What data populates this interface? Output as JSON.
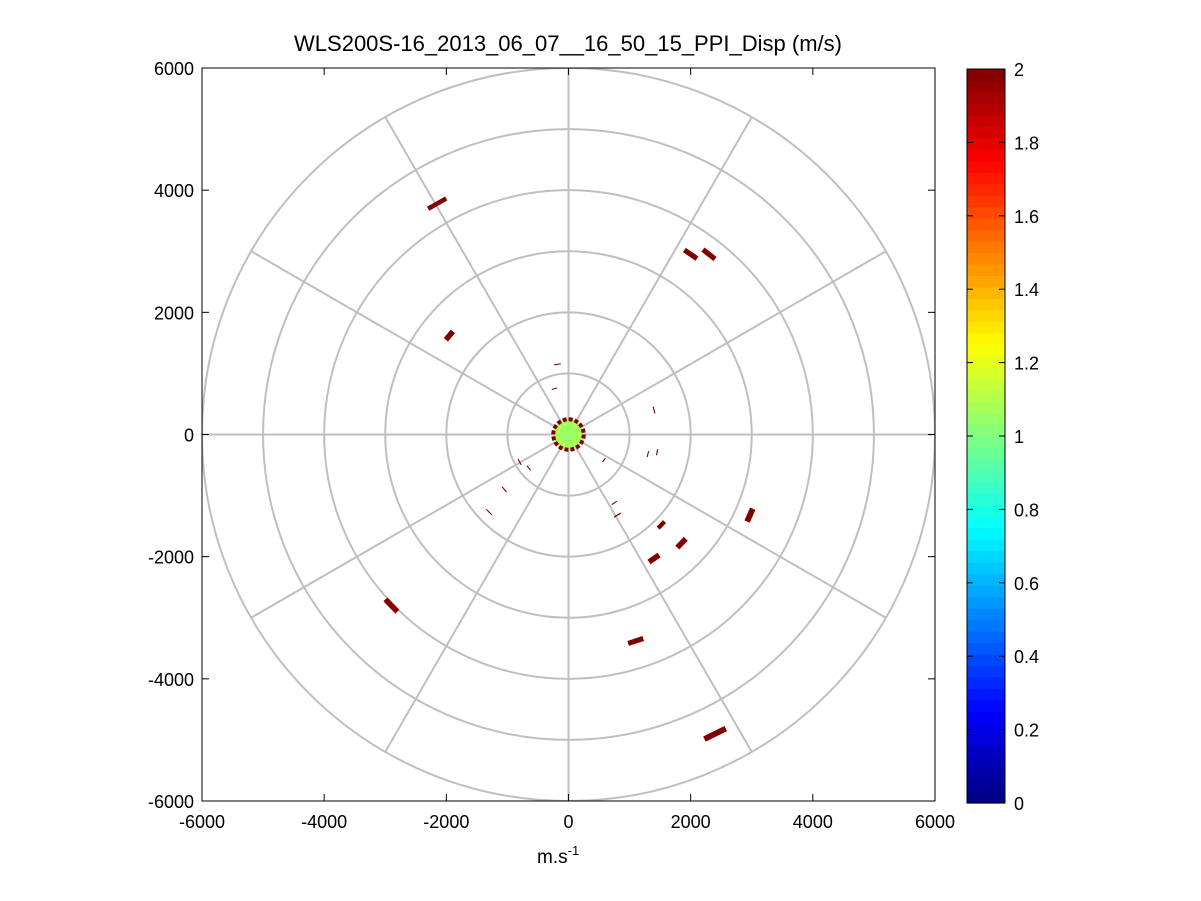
{
  "chart_data": {
    "type": "scatter",
    "subtype": "polar-ppi",
    "title": "WLS200S-16_2013_06_07__16_50_15_PPI_Disp (m/s)",
    "xlabel": "m.s",
    "xlabel_superscript": "-1",
    "ylabel": "",
    "xlim": [
      -6000,
      6000
    ],
    "ylim": [
      -6000,
      6000
    ],
    "xticks": [
      -6000,
      -4000,
      -2000,
      0,
      2000,
      4000,
      6000
    ],
    "yticks": [
      6000,
      4000,
      2000,
      0,
      -2000,
      -4000,
      -6000
    ],
    "xtick_labels": [
      "-6000",
      "-4000",
      "-2000",
      "0",
      "2000",
      "4000",
      "6000"
    ],
    "ytick_labels": [
      "6000",
      "4000",
      "2000",
      "0",
      "-2000",
      "-4000",
      "-6000"
    ],
    "grid": true,
    "polar_grid": {
      "ring_radii": [
        1000,
        2000,
        3000,
        4000,
        5000,
        6000
      ],
      "spoke_angles_deg": [
        0,
        30,
        60,
        90,
        120,
        150,
        180,
        210,
        240,
        270,
        300,
        330
      ]
    },
    "colorbar": {
      "colormap": "jet",
      "min": 0,
      "max": 2,
      "ticks": [
        2,
        1.8,
        1.6,
        1.4,
        1.2,
        1,
        0.8,
        0.6,
        0.4,
        0.2,
        0
      ],
      "tick_labels": [
        "2",
        "1.8",
        "1.6",
        "1.4",
        "1.2",
        "1",
        "0.8",
        "0.6",
        "0.4",
        "0.2",
        "0"
      ],
      "position": "right"
    },
    "center_disc": {
      "x": 0,
      "y": 0,
      "r": 250,
      "inner_value": 1.05,
      "edge_value": 2
    },
    "points": [
      {
        "x": -2150,
        "y": 3780,
        "value": 2,
        "len": 340,
        "w": 75
      },
      {
        "x": 2000,
        "y": 2950,
        "value": 2,
        "len": 250,
        "w": 85
      },
      {
        "x": 2300,
        "y": 2950,
        "value": 2,
        "len": 250,
        "w": 85
      },
      {
        "x": -1950,
        "y": 1620,
        "value": 2,
        "len": 180,
        "w": 90
      },
      {
        "x": -180,
        "y": 1150,
        "value": 2,
        "len": 110,
        "w": 18
      },
      {
        "x": -230,
        "y": 750,
        "value": 2,
        "len": 90,
        "w": 18
      },
      {
        "x": 1400,
        "y": 400,
        "value": 2,
        "len": 110,
        "w": 18
      },
      {
        "x": 1300,
        "y": -320,
        "value": 2,
        "len": 100,
        "w": 18
      },
      {
        "x": 1450,
        "y": -290,
        "value": 2,
        "len": 100,
        "w": 18
      },
      {
        "x": 580,
        "y": -420,
        "value": 2,
        "len": 80,
        "w": 18
      },
      {
        "x": -800,
        "y": -450,
        "value": 2,
        "len": 110,
        "w": 18
      },
      {
        "x": -650,
        "y": -550,
        "value": 2,
        "len": 100,
        "w": 18
      },
      {
        "x": -1050,
        "y": -900,
        "value": 2,
        "len": 110,
        "w": 18
      },
      {
        "x": -1300,
        "y": -1270,
        "value": 2,
        "len": 130,
        "w": 18
      },
      {
        "x": 750,
        "y": -1120,
        "value": 2,
        "len": 100,
        "w": 18
      },
      {
        "x": 800,
        "y": -1320,
        "value": 2,
        "len": 130,
        "w": 20
      },
      {
        "x": 2970,
        "y": -1320,
        "value": 2,
        "len": 230,
        "w": 95
      },
      {
        "x": 1520,
        "y": -1480,
        "value": 2,
        "len": 150,
        "w": 70
      },
      {
        "x": 1850,
        "y": -1780,
        "value": 2,
        "len": 200,
        "w": 90
      },
      {
        "x": 1400,
        "y": -2030,
        "value": 2,
        "len": 200,
        "w": 90
      },
      {
        "x": -2900,
        "y": -2800,
        "value": 2,
        "len": 280,
        "w": 90
      },
      {
        "x": 1100,
        "y": -3380,
        "value": 2,
        "len": 260,
        "w": 85
      },
      {
        "x": 2400,
        "y": -4900,
        "value": 2,
        "len": 390,
        "w": 95
      }
    ]
  }
}
